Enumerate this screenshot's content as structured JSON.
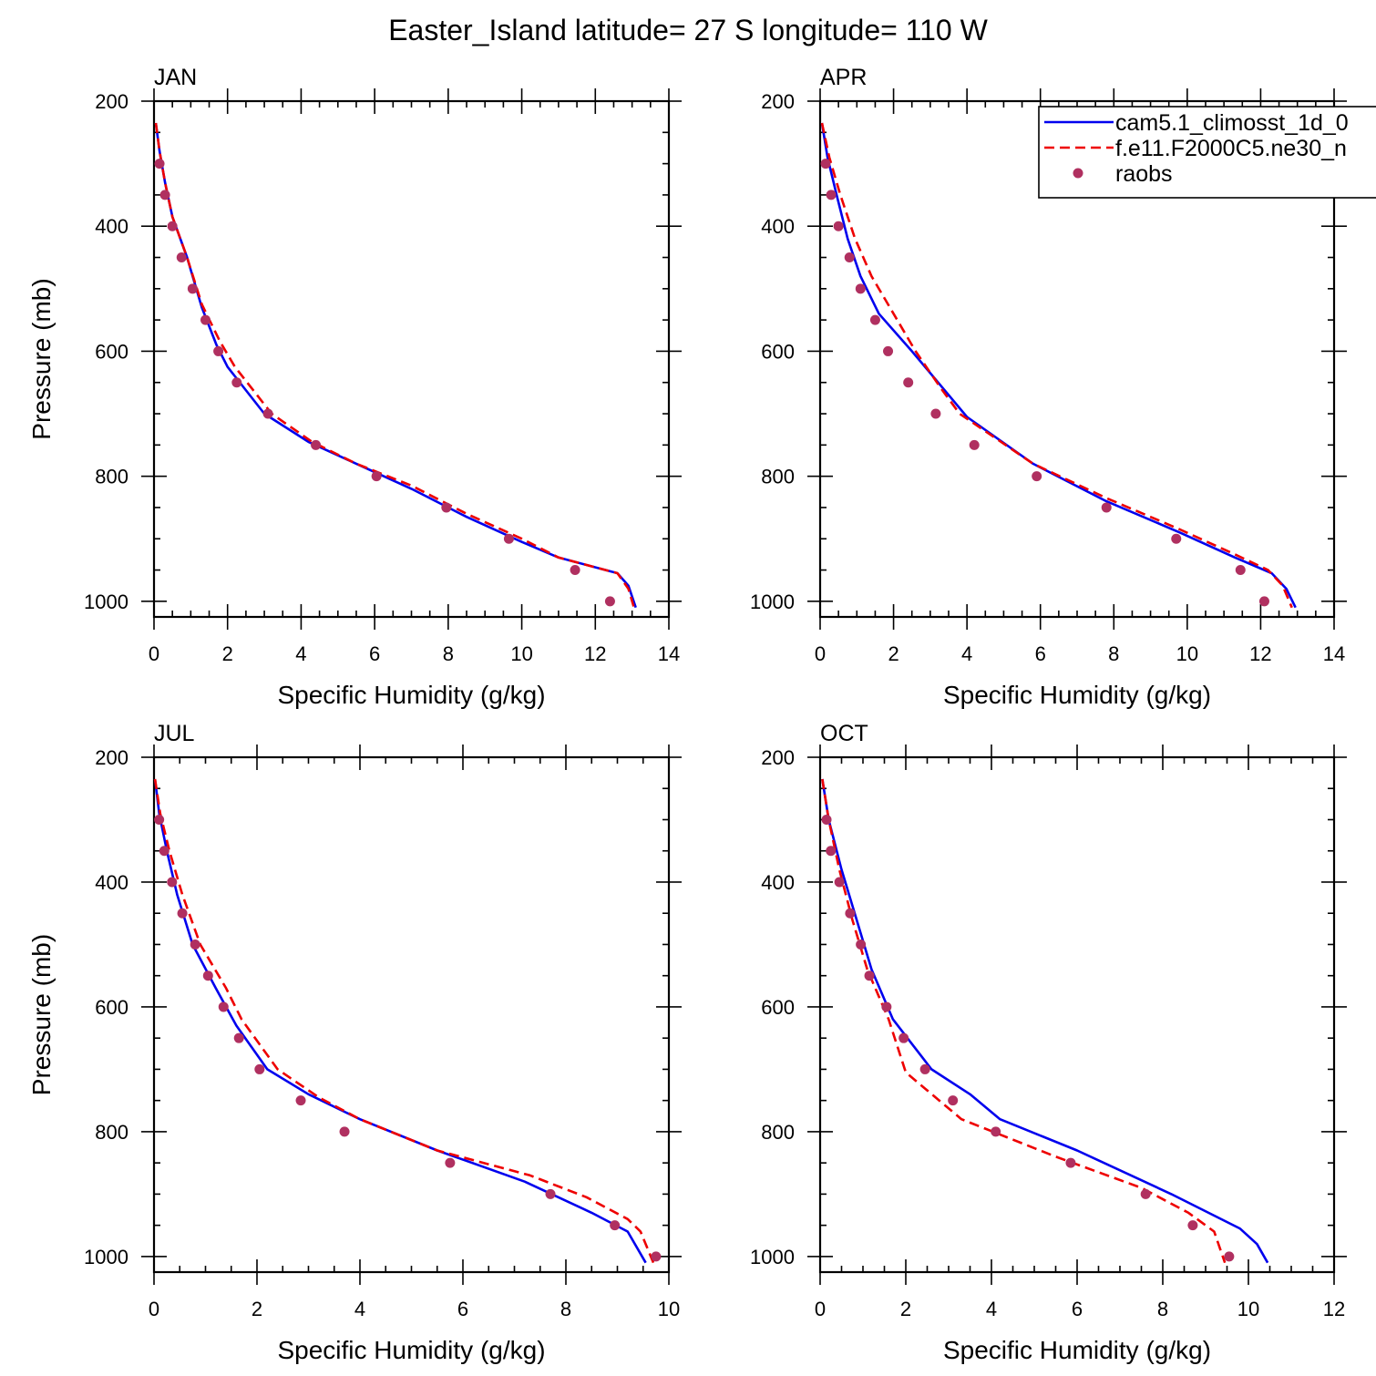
{
  "title": "Easter_Island  latitude= 27 S longitude= 110 W",
  "colors": {
    "cam": "#0000ee",
    "f11": "#ee0000",
    "raobs": "#b03060"
  },
  "legend": {
    "entries": [
      {
        "key": "cam",
        "label": "cam5.1_climosst_1d_0",
        "style": "solid"
      },
      {
        "key": "f11",
        "label": "f.e11.F2000C5.ne30_n",
        "style": "dashed"
      },
      {
        "key": "raobs",
        "label": "raobs",
        "style": "marker"
      }
    ]
  },
  "chart_data": [
    {
      "type": "line",
      "panel": "JAN",
      "xlabel": "Specific Humidity (g/kg)",
      "ylabel": "Pressure (mb)",
      "xlim": [
        0,
        14
      ],
      "ylim": [
        200,
        1025
      ],
      "xticks": [
        0,
        2,
        4,
        6,
        8,
        10,
        12,
        14
      ],
      "yticks": [
        200,
        400,
        600,
        800,
        1000
      ],
      "series": [
        {
          "key": "cam",
          "points": [
            [
              0.05,
              235
            ],
            [
              0.15,
              280
            ],
            [
              0.3,
              330
            ],
            [
              0.5,
              385
            ],
            [
              0.9,
              450
            ],
            [
              1.3,
              530
            ],
            [
              1.7,
              590
            ],
            [
              2.0,
              625
            ],
            [
              3.0,
              700
            ],
            [
              4.2,
              745
            ],
            [
              5.5,
              780
            ],
            [
              7.0,
              820
            ],
            [
              8.5,
              865
            ],
            [
              10.0,
              905
            ],
            [
              11.0,
              930
            ],
            [
              12.6,
              955
            ],
            [
              12.9,
              975
            ],
            [
              13.1,
              1010
            ]
          ]
        },
        {
          "key": "f11",
          "points": [
            [
              0.05,
              235
            ],
            [
              0.15,
              280
            ],
            [
              0.3,
              330
            ],
            [
              0.5,
              385
            ],
            [
              0.9,
              450
            ],
            [
              1.3,
              525
            ],
            [
              1.8,
              585
            ],
            [
              2.2,
              625
            ],
            [
              3.2,
              700
            ],
            [
              4.3,
              745
            ],
            [
              5.5,
              780
            ],
            [
              7.0,
              815
            ],
            [
              8.5,
              860
            ],
            [
              10.0,
              900
            ],
            [
              11.0,
              930
            ],
            [
              12.6,
              955
            ],
            [
              12.9,
              980
            ],
            [
              13.05,
              1010
            ]
          ]
        },
        {
          "key": "raobs",
          "points": [
            [
              0.15,
              300
            ],
            [
              0.3,
              350
            ],
            [
              0.5,
              400
            ],
            [
              0.75,
              450
            ],
            [
              1.05,
              500
            ],
            [
              1.4,
              550
            ],
            [
              1.75,
              600
            ],
            [
              2.25,
              650
            ],
            [
              3.1,
              700
            ],
            [
              4.4,
              750
            ],
            [
              6.05,
              800
            ],
            [
              7.95,
              850
            ],
            [
              9.65,
              900
            ],
            [
              11.45,
              950
            ],
            [
              12.4,
              1000
            ]
          ]
        }
      ]
    },
    {
      "type": "line",
      "panel": "APR",
      "xlabel": "Specific Humidity (g/kg)",
      "ylabel": "",
      "xlim": [
        0,
        14
      ],
      "ylim": [
        200,
        1025
      ],
      "xticks": [
        0,
        2,
        4,
        6,
        8,
        10,
        12,
        14
      ],
      "yticks": [
        200,
        400,
        600,
        800,
        1000
      ],
      "series": [
        {
          "key": "cam",
          "points": [
            [
              0.05,
              235
            ],
            [
              0.2,
              290
            ],
            [
              0.45,
              350
            ],
            [
              0.75,
              420
            ],
            [
              1.1,
              480
            ],
            [
              1.6,
              540
            ],
            [
              2.5,
              600
            ],
            [
              3.5,
              670
            ],
            [
              4.0,
              705
            ],
            [
              5.8,
              780
            ],
            [
              7.8,
              840
            ],
            [
              9.8,
              890
            ],
            [
              11.3,
              930
            ],
            [
              12.3,
              955
            ],
            [
              12.7,
              980
            ],
            [
              12.95,
              1010
            ]
          ]
        },
        {
          "key": "f11",
          "points": [
            [
              0.05,
              235
            ],
            [
              0.25,
              290
            ],
            [
              0.55,
              350
            ],
            [
              0.95,
              420
            ],
            [
              1.4,
              480
            ],
            [
              2.0,
              540
            ],
            [
              2.6,
              600
            ],
            [
              3.3,
              660
            ],
            [
              3.8,
              700
            ],
            [
              5.8,
              780
            ],
            [
              7.8,
              835
            ],
            [
              9.8,
              885
            ],
            [
              11.3,
              925
            ],
            [
              12.2,
              950
            ],
            [
              12.6,
              975
            ],
            [
              12.85,
              1010
            ]
          ]
        },
        {
          "key": "raobs",
          "points": [
            [
              0.15,
              300
            ],
            [
              0.3,
              350
            ],
            [
              0.5,
              400
            ],
            [
              0.8,
              450
            ],
            [
              1.1,
              500
            ],
            [
              1.5,
              550
            ],
            [
              1.85,
              600
            ],
            [
              2.4,
              650
            ],
            [
              3.15,
              700
            ],
            [
              4.2,
              750
            ],
            [
              5.9,
              800
            ],
            [
              7.8,
              850
            ],
            [
              9.7,
              900
            ],
            [
              11.45,
              950
            ],
            [
              12.1,
              1000
            ]
          ]
        }
      ]
    },
    {
      "type": "line",
      "panel": "JUL",
      "xlabel": "Specific Humidity (g/kg)",
      "ylabel": "Pressure (mb)",
      "xlim": [
        0,
        10
      ],
      "ylim": [
        200,
        1025
      ],
      "xticks": [
        0,
        2,
        4,
        6,
        8,
        10
      ],
      "yticks": [
        200,
        400,
        600,
        800,
        1000
      ],
      "series": [
        {
          "key": "cam",
          "points": [
            [
              0.02,
              235
            ],
            [
              0.1,
              290
            ],
            [
              0.25,
              350
            ],
            [
              0.45,
              420
            ],
            [
              0.75,
              500
            ],
            [
              1.2,
              570
            ],
            [
              1.6,
              630
            ],
            [
              2.2,
              700
            ],
            [
              3.0,
              740
            ],
            [
              4.0,
              780
            ],
            [
              5.5,
              830
            ],
            [
              7.2,
              880
            ],
            [
              8.5,
              930
            ],
            [
              9.2,
              960
            ],
            [
              9.55,
              1010
            ]
          ]
        },
        {
          "key": "f11",
          "points": [
            [
              0.02,
              235
            ],
            [
              0.12,
              290
            ],
            [
              0.3,
              350
            ],
            [
              0.55,
              420
            ],
            [
              0.9,
              500
            ],
            [
              1.4,
              570
            ],
            [
              1.7,
              620
            ],
            [
              2.4,
              700
            ],
            [
              3.2,
              745
            ],
            [
              4.0,
              780
            ],
            [
              5.5,
              830
            ],
            [
              7.3,
              870
            ],
            [
              8.4,
              905
            ],
            [
              9.2,
              940
            ],
            [
              9.45,
              960
            ],
            [
              9.7,
              1010
            ]
          ]
        },
        {
          "key": "raobs",
          "points": [
            [
              0.1,
              300
            ],
            [
              0.2,
              350
            ],
            [
              0.35,
              400
            ],
            [
              0.55,
              450
            ],
            [
              0.8,
              500
            ],
            [
              1.05,
              550
            ],
            [
              1.35,
              600
            ],
            [
              1.65,
              650
            ],
            [
              2.05,
              700
            ],
            [
              2.85,
              750
            ],
            [
              3.7,
              800
            ],
            [
              5.75,
              850
            ],
            [
              7.7,
              900
            ],
            [
              8.95,
              950
            ],
            [
              9.75,
              1000
            ]
          ]
        }
      ]
    },
    {
      "type": "line",
      "panel": "OCT",
      "xlabel": "Specific Humidity (g/kg)",
      "ylabel": "",
      "xlim": [
        0,
        12
      ],
      "ylim": [
        200,
        1025
      ],
      "xticks": [
        0,
        2,
        4,
        6,
        8,
        10,
        12
      ],
      "yticks": [
        200,
        400,
        600,
        800,
        1000
      ],
      "series": [
        {
          "key": "cam",
          "points": [
            [
              0.05,
              235
            ],
            [
              0.2,
              300
            ],
            [
              0.5,
              380
            ],
            [
              0.85,
              460
            ],
            [
              1.2,
              540
            ],
            [
              1.7,
              620
            ],
            [
              2.6,
              700
            ],
            [
              3.5,
              740
            ],
            [
              4.2,
              780
            ],
            [
              6.0,
              830
            ],
            [
              8.2,
              900
            ],
            [
              9.8,
              955
            ],
            [
              10.2,
              980
            ],
            [
              10.45,
              1010
            ]
          ]
        },
        {
          "key": "f11",
          "points": [
            [
              0.05,
              235
            ],
            [
              0.2,
              300
            ],
            [
              0.45,
              380
            ],
            [
              0.75,
              460
            ],
            [
              1.1,
              540
            ],
            [
              1.6,
              620
            ],
            [
              2.0,
              705
            ],
            [
              3.3,
              780
            ],
            [
              5.5,
              840
            ],
            [
              7.5,
              890
            ],
            [
              8.6,
              930
            ],
            [
              9.2,
              960
            ],
            [
              9.45,
              1010
            ]
          ]
        },
        {
          "key": "raobs",
          "points": [
            [
              0.15,
              300
            ],
            [
              0.25,
              350
            ],
            [
              0.45,
              400
            ],
            [
              0.7,
              450
            ],
            [
              0.95,
              500
            ],
            [
              1.15,
              550
            ],
            [
              1.55,
              600
            ],
            [
              1.95,
              650
            ],
            [
              2.45,
              700
            ],
            [
              3.1,
              750
            ],
            [
              4.1,
              800
            ],
            [
              5.85,
              850
            ],
            [
              7.6,
              900
            ],
            [
              8.7,
              950
            ],
            [
              9.55,
              1000
            ]
          ]
        }
      ]
    }
  ]
}
